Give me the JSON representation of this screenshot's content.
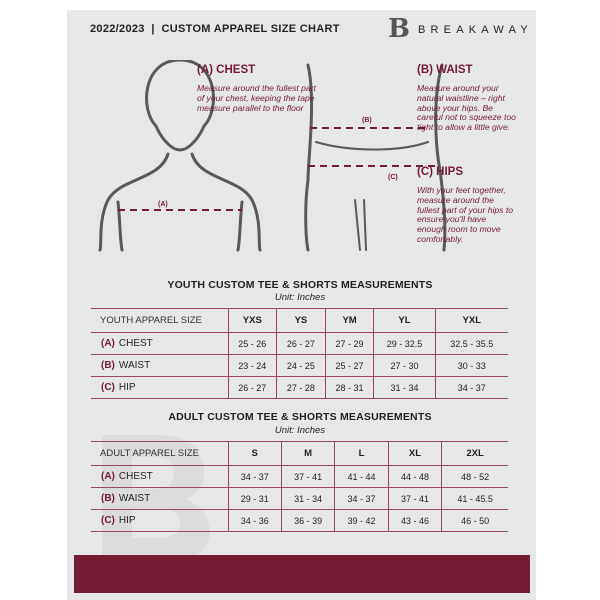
{
  "header": {
    "title": "2022/2023  |  CUSTOM APPAREL SIZE CHART",
    "brand": "BREAKAWAY",
    "logo_letter": "B"
  },
  "measure": {
    "chest": {
      "heading": "(A) CHEST",
      "marker": "(A)",
      "text": "Measure around the fullest part of your chest, keeping the tape measure parallel to the floor"
    },
    "waist": {
      "heading": "(B) WAIST",
      "marker": "(B)",
      "text": "Measure around your natural waistline – right above your hips. Be careful not to squeeze too tight to allow a little give."
    },
    "hips": {
      "heading": "(C) HIPS",
      "marker": "(C)",
      "text": "With your feet together, measure around the fullest part of your hips to ensure you'll have enough room to move comfortably."
    }
  },
  "colors": {
    "accent": "#741c33",
    "panel": "#e6e7e8"
  },
  "youth": {
    "title": "YOUTH CUSTOM TEE & SHORTS MEASUREMENTS",
    "unit": "Unit: Inches",
    "header": [
      "YOUTH APPAREL SIZE",
      "YXS",
      "YS",
      "YM",
      "YL",
      "YXL"
    ],
    "rows": [
      {
        "letter": "(A)",
        "name": "CHEST",
        "values": [
          "25 - 26",
          "26 - 27",
          "27 - 29",
          "29 - 32.5",
          "32.5 - 35.5"
        ]
      },
      {
        "letter": "(B)",
        "name": "WAIST",
        "values": [
          "23 - 24",
          "24 - 25",
          "25 - 27",
          "27 - 30",
          "30 - 33"
        ]
      },
      {
        "letter": "(C)",
        "name": "HIP",
        "values": [
          "26 - 27",
          "27 - 28",
          "28 - 31",
          "31 - 34",
          "34 - 37"
        ]
      }
    ]
  },
  "adult": {
    "title": "ADULT CUSTOM TEE & SHORTS MEASUREMENTS",
    "unit": "Unit: Inches",
    "header": [
      "ADULT APPAREL SIZE",
      "S",
      "M",
      "L",
      "XL",
      "2XL"
    ],
    "rows": [
      {
        "letter": "(A)",
        "name": "CHEST",
        "values": [
          "34 - 37",
          "37 - 41",
          "41 - 44",
          "44 - 48",
          "48 - 52"
        ]
      },
      {
        "letter": "(B)",
        "name": "WAIST",
        "values": [
          "29 - 31",
          "31 - 34",
          "34 - 37",
          "37 - 41",
          "41 - 45.5"
        ]
      },
      {
        "letter": "(C)",
        "name": "HIP",
        "values": [
          "34 - 36",
          "36 - 39",
          "39 - 42",
          "43 - 46",
          "46 - 50"
        ]
      }
    ]
  }
}
